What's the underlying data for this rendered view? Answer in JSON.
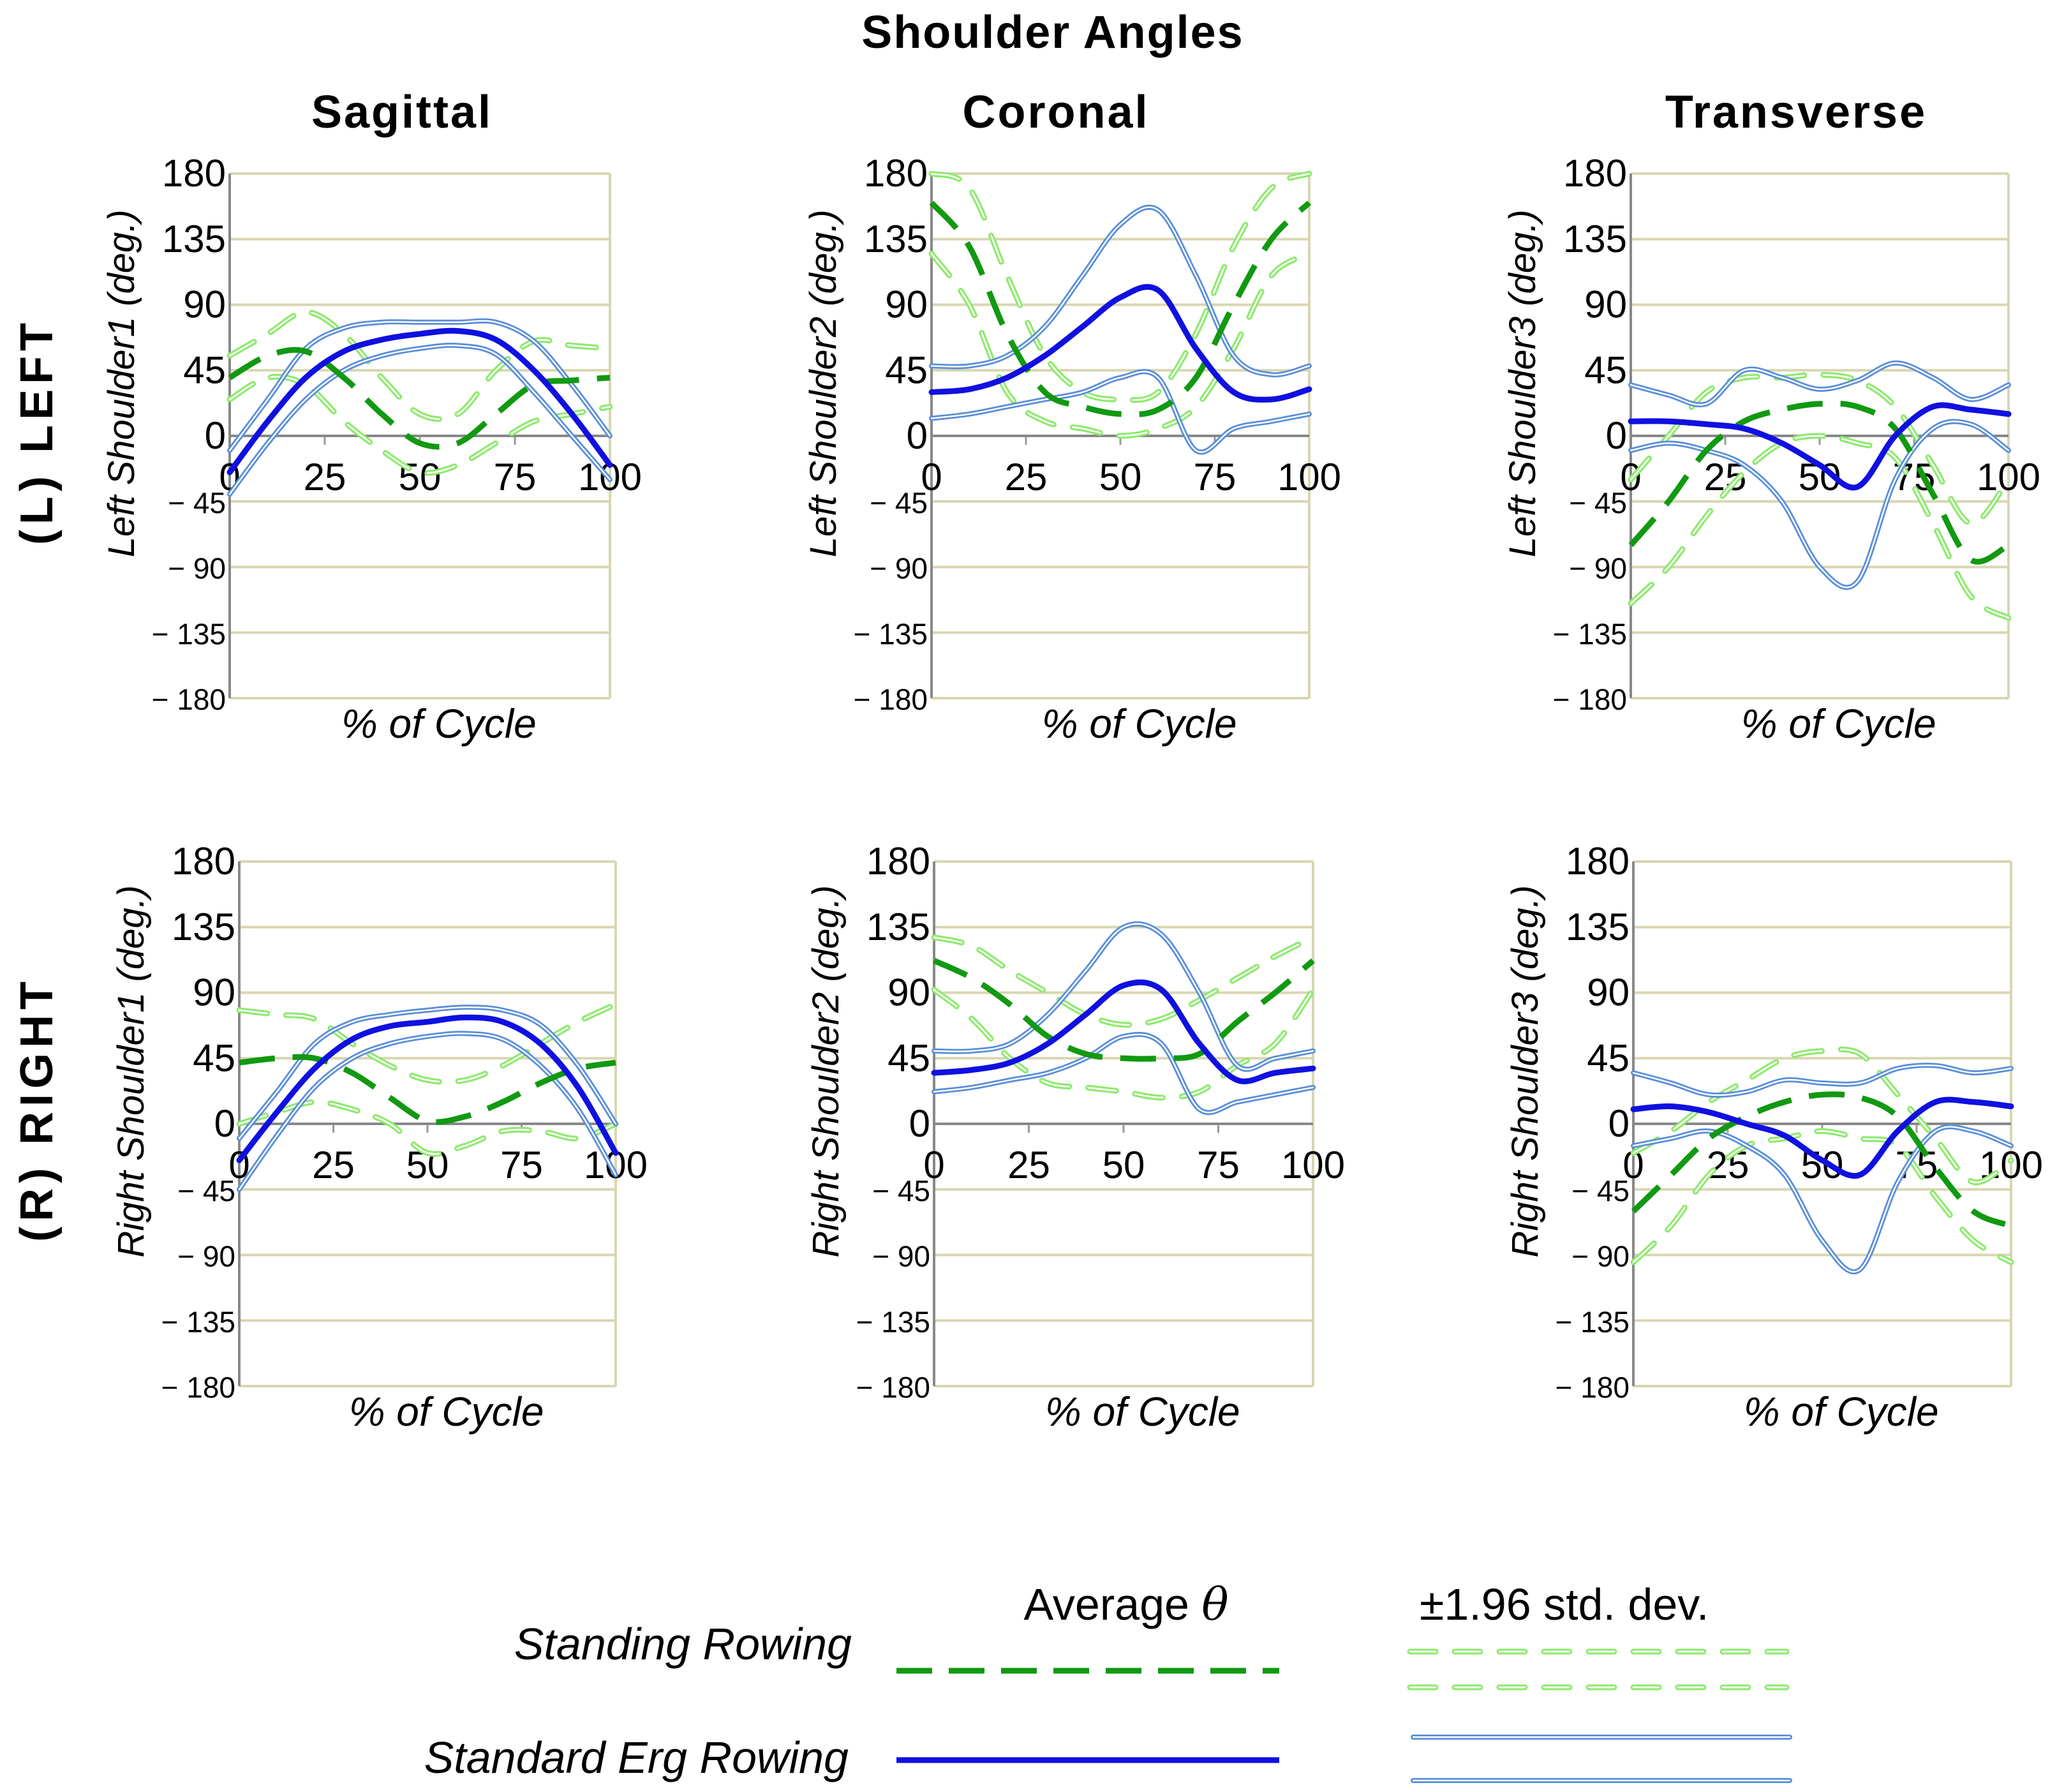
{
  "figure_title": "Shoulder Angles",
  "column_titles": [
    "Sagittal",
    "Coronal",
    "Transverse"
  ],
  "row_titles": [
    "(L) LEFT",
    "(R) RIGHT"
  ],
  "xlabel": "% of Cycle",
  "y_tick_labels": [
    "180",
    "135",
    "90",
    "45",
    "0",
    "− 45",
    "− 90",
    "− 135",
    "− 180"
  ],
  "x_tick_labels": [
    "0",
    "25",
    "50",
    "75",
    "100"
  ],
  "legend": {
    "avg_header": "Average ",
    "theta": "θ",
    "std_header": "±1.96 std. dev.",
    "standing_label": "Standing Rowing",
    "erg_label": "Standard Erg Rowing"
  },
  "colors": {
    "standing_avg": "#119911",
    "standing_std": "#8eea6e",
    "erg_avg": "#1010e0",
    "erg_std": "#5b8fd8",
    "grid": "#d8d6b0"
  },
  "chart_data": [
    {
      "type": "line",
      "row": "(L) LEFT",
      "column": "Sagittal",
      "ylabel": "Left Shoulder1 (deg.)",
      "xlim": [
        0,
        100
      ],
      "ylim": [
        -180,
        180
      ],
      "x": [
        0,
        10,
        20,
        30,
        40,
        50,
        60,
        70,
        80,
        90,
        100
      ],
      "series": [
        {
          "name": "Standing Rowing Average",
          "values": [
            40,
            55,
            58,
            40,
            15,
            -5,
            -5,
            15,
            35,
            38,
            40
          ]
        },
        {
          "name": "Standing Rowing +1.96 SD",
          "values": [
            55,
            70,
            85,
            70,
            40,
            15,
            15,
            45,
            65,
            62,
            60
          ]
        },
        {
          "name": "Standing Rowing -1.96 SD",
          "values": [
            25,
            40,
            35,
            10,
            -10,
            -25,
            -20,
            -5,
            10,
            15,
            20
          ]
        },
        {
          "name": "Standard Erg Rowing Average",
          "values": [
            -25,
            10,
            40,
            58,
            66,
            70,
            72,
            66,
            45,
            15,
            -20
          ]
        },
        {
          "name": "Standard Erg Rowing +1.96 SD",
          "values": [
            -10,
            25,
            60,
            74,
            78,
            78,
            78,
            78,
            65,
            35,
            0
          ]
        },
        {
          "name": "Standard Erg Rowing -1.96 SD",
          "values": [
            -40,
            -5,
            25,
            45,
            55,
            60,
            62,
            56,
            30,
            0,
            -30
          ]
        }
      ]
    },
    {
      "type": "line",
      "row": "(L) LEFT",
      "column": "Coronal",
      "ylabel": "Left Shoulder2 (deg.)",
      "xlim": [
        0,
        100
      ],
      "ylim": [
        -180,
        180
      ],
      "x": [
        0,
        10,
        20,
        30,
        40,
        50,
        60,
        70,
        80,
        90,
        100
      ],
      "series": [
        {
          "name": "Standing Rowing Average",
          "values": [
            160,
            130,
            70,
            30,
            20,
            15,
            18,
            40,
            90,
            135,
            160
          ]
        },
        {
          "name": "Standing Rowing +1.96 SD",
          "values": [
            180,
            170,
            110,
            55,
            30,
            25,
            30,
            70,
            130,
            170,
            180
          ]
        },
        {
          "name": "Standing Rowing -1.96 SD",
          "values": [
            125,
            90,
            30,
            10,
            5,
            0,
            5,
            20,
            60,
            110,
            125
          ]
        },
        {
          "name": "Standard Erg Rowing Average",
          "values": [
            30,
            32,
            40,
            55,
            75,
            95,
            100,
            60,
            30,
            25,
            32
          ]
        },
        {
          "name": "Standard Erg Rowing +1.96 SD",
          "values": [
            48,
            48,
            55,
            75,
            110,
            145,
            155,
            110,
            55,
            42,
            48
          ]
        },
        {
          "name": "Standard Erg Rowing -1.96 SD",
          "values": [
            12,
            15,
            20,
            25,
            30,
            40,
            40,
            -10,
            5,
            10,
            15
          ]
        }
      ]
    },
    {
      "type": "line",
      "row": "(L) LEFT",
      "column": "Transverse",
      "ylabel": "Left Shoulder3 (deg.)",
      "xlim": [
        0,
        100
      ],
      "ylim": [
        -180,
        180
      ],
      "x": [
        0,
        10,
        20,
        30,
        40,
        50,
        60,
        70,
        80,
        90,
        100
      ],
      "series": [
        {
          "name": "Standing Rowing Average",
          "values": [
            -75,
            -45,
            -10,
            10,
            18,
            22,
            20,
            5,
            -40,
            -85,
            -75
          ]
        },
        {
          "name": "Standing Rowing +1.96 SD",
          "values": [
            -30,
            0,
            30,
            40,
            40,
            42,
            38,
            20,
            -20,
            -60,
            -30
          ]
        },
        {
          "name": "Standing Rowing -1.96 SD",
          "values": [
            -115,
            -90,
            -55,
            -25,
            -5,
            0,
            -5,
            -15,
            -60,
            -110,
            -125
          ]
        },
        {
          "name": "Standard Erg Rowing Average",
          "values": [
            10,
            10,
            8,
            5,
            -5,
            -20,
            -35,
            0,
            20,
            18,
            15
          ]
        },
        {
          "name": "Standard Erg Rowing +1.96 SD",
          "values": [
            35,
            28,
            22,
            45,
            40,
            32,
            38,
            50,
            40,
            25,
            35
          ]
        },
        {
          "name": "Standard Erg Rowing -1.96 SD",
          "values": [
            -10,
            -5,
            -10,
            -20,
            -45,
            -90,
            -100,
            -30,
            5,
            8,
            -10
          ]
        }
      ]
    },
    {
      "type": "line",
      "row": "(R) RIGHT",
      "column": "Sagittal",
      "ylabel": "Right Shoulder1 (deg.)",
      "xlim": [
        0,
        100
      ],
      "ylim": [
        -180,
        180
      ],
      "x": [
        0,
        10,
        20,
        30,
        40,
        50,
        60,
        70,
        80,
        90,
        100
      ],
      "series": [
        {
          "name": "Standing Rowing Average",
          "values": [
            42,
            45,
            45,
            35,
            18,
            2,
            5,
            15,
            28,
            38,
            42
          ]
        },
        {
          "name": "Standing Rowing +1.96 SD",
          "values": [
            78,
            75,
            72,
            55,
            40,
            30,
            30,
            40,
            55,
            70,
            82
          ]
        },
        {
          "name": "Standing Rowing -1.96 SD",
          "values": [
            0,
            8,
            15,
            10,
            0,
            -20,
            -15,
            -5,
            -5,
            -10,
            0
          ]
        },
        {
          "name": "Standard Erg Rowing Average",
          "values": [
            -25,
            8,
            38,
            58,
            67,
            70,
            73,
            70,
            55,
            25,
            -20
          ]
        },
        {
          "name": "Standard Erg Rowing +1.96 SD",
          "values": [
            -10,
            22,
            55,
            70,
            75,
            78,
            80,
            78,
            68,
            40,
            0
          ]
        },
        {
          "name": "Standard Erg Rowing -1.96 SD",
          "values": [
            -45,
            -8,
            25,
            45,
            55,
            60,
            62,
            58,
            40,
            10,
            -35
          ]
        }
      ]
    },
    {
      "type": "line",
      "row": "(R) RIGHT",
      "column": "Coronal",
      "ylabel": "Right Shoulder2 (deg.)",
      "xlim": [
        0,
        100
      ],
      "ylim": [
        -180,
        180
      ],
      "x": [
        0,
        10,
        20,
        30,
        40,
        50,
        60,
        70,
        80,
        90,
        100
      ],
      "series": [
        {
          "name": "Standing Rowing Average",
          "values": [
            112,
            100,
            82,
            60,
            48,
            45,
            45,
            48,
            70,
            90,
            112
          ]
        },
        {
          "name": "Standing Rowing +1.96 SD",
          "values": [
            128,
            122,
            105,
            90,
            75,
            68,
            72,
            85,
            100,
            115,
            128
          ]
        },
        {
          "name": "Standing Rowing -1.96 SD",
          "values": [
            92,
            72,
            45,
            28,
            25,
            22,
            18,
            22,
            40,
            55,
            92
          ]
        },
        {
          "name": "Standard Erg Rowing Average",
          "values": [
            35,
            37,
            42,
            55,
            75,
            95,
            92,
            55,
            30,
            35,
            38
          ]
        },
        {
          "name": "Standard Erg Rowing +1.96 SD",
          "values": [
            50,
            50,
            55,
            75,
            105,
            135,
            130,
            90,
            40,
            45,
            50
          ]
        },
        {
          "name": "Standard Erg Rowing -1.96 SD",
          "values": [
            22,
            25,
            30,
            35,
            45,
            60,
            55,
            10,
            15,
            20,
            25
          ]
        }
      ]
    },
    {
      "type": "line",
      "row": "(R) RIGHT",
      "column": "Transverse",
      "ylabel": "Right Shoulder3 (deg.)",
      "xlim": [
        0,
        100
      ],
      "ylim": [
        -180,
        180
      ],
      "x": [
        0,
        10,
        20,
        30,
        40,
        50,
        60,
        70,
        80,
        90,
        100
      ],
      "series": [
        {
          "name": "Standing Rowing Average",
          "values": [
            -60,
            -35,
            -10,
            5,
            15,
            20,
            18,
            5,
            -30,
            -60,
            -70
          ]
        },
        {
          "name": "Standing Rowing +1.96 SD",
          "values": [
            -20,
            -5,
            15,
            30,
            45,
            50,
            48,
            20,
            -10,
            -40,
            -25
          ]
        },
        {
          "name": "Standing Rowing -1.96 SD",
          "values": [
            -95,
            -70,
            -35,
            -15,
            -10,
            -5,
            -10,
            -15,
            -50,
            -80,
            -95
          ]
        },
        {
          "name": "Standard Erg Rowing Average",
          "values": [
            10,
            12,
            8,
            0,
            -8,
            -25,
            -35,
            -5,
            15,
            15,
            12
          ]
        },
        {
          "name": "Standard Erg Rowing +1.96 SD",
          "values": [
            35,
            28,
            20,
            22,
            30,
            28,
            28,
            38,
            40,
            35,
            38
          ]
        },
        {
          "name": "Standard Erg Rowing -1.96 SD",
          "values": [
            -15,
            -10,
            -5,
            -15,
            -35,
            -80,
            -100,
            -40,
            -5,
            -5,
            -15
          ]
        }
      ]
    }
  ]
}
